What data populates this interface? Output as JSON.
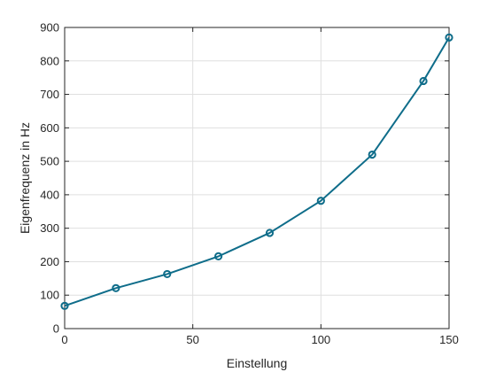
{
  "chart_data": {
    "type": "line",
    "xlabel": "Einstellung",
    "ylabel": "Eigenfrequenz in Hz",
    "xlim": [
      0,
      150
    ],
    "ylim": [
      0,
      900
    ],
    "xticks": [
      0,
      50,
      100,
      150
    ],
    "yticks": [
      0,
      100,
      200,
      300,
      400,
      500,
      600,
      700,
      800,
      900
    ],
    "grid": true,
    "marker": "circle",
    "line_color": "#0f6d8a",
    "series": [
      {
        "x": [
          0,
          20,
          40,
          60,
          80,
          100,
          120,
          140,
          150
        ],
        "y": [
          68,
          121,
          163,
          216,
          286,
          382,
          520,
          740,
          870
        ]
      }
    ]
  }
}
